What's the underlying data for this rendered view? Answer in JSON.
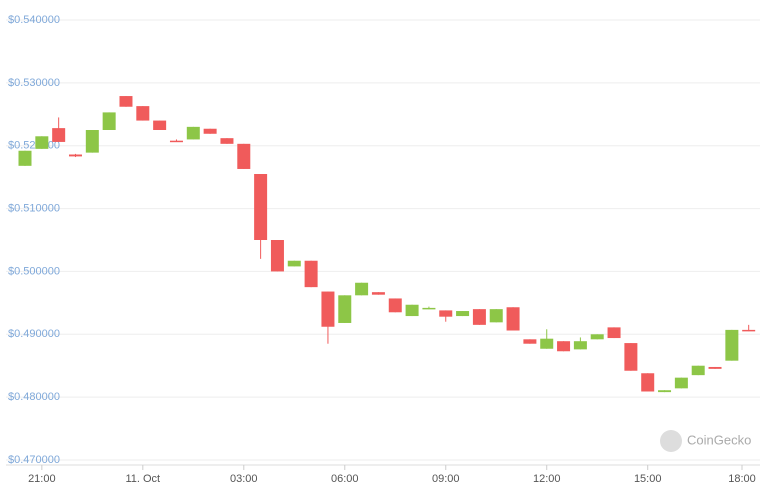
{
  "chart_data": {
    "type": "candlestick",
    "categories": [
      null,
      "21:00",
      null,
      null,
      null,
      null,
      null,
      "11. Oct",
      null,
      null,
      null,
      null,
      null,
      "03:00",
      null,
      null,
      null,
      null,
      null,
      "06:00",
      null,
      null,
      null,
      null,
      null,
      "09:00",
      null,
      null,
      null,
      null,
      null,
      "12:00",
      null,
      null,
      null,
      null,
      null,
      "15:00",
      null,
      null,
      null,
      null,
      null,
      "18:00"
    ],
    "open": [
      0.5168,
      0.5195,
      0.5228,
      0.5186,
      0.5189,
      0.5225,
      0.5279,
      0.5263,
      0.524,
      0.5208,
      0.521,
      0.5227,
      0.5212,
      0.5203,
      0.5155,
      0.505,
      0.5008,
      0.5017,
      0.4968,
      0.4918,
      0.4962,
      0.4967,
      0.4957,
      0.4929,
      0.494,
      0.4938,
      0.4929,
      0.494,
      0.4919,
      0.4943,
      0.4892,
      0.4877,
      0.4889,
      0.4876,
      0.4892,
      0.4911,
      0.4886,
      0.4838,
      0.4808,
      0.4814,
      0.4835,
      0.4848,
      0.4858,
      0.4907
    ],
    "high": [
      0.5192,
      0.5215,
      0.5245,
      0.5187,
      0.5225,
      0.5253,
      0.5279,
      0.5263,
      0.524,
      0.521,
      0.523,
      0.5227,
      0.5212,
      0.5203,
      0.5155,
      0.505,
      0.5017,
      0.5017,
      0.4968,
      0.4962,
      0.4982,
      0.4967,
      0.4957,
      0.4947,
      0.4944,
      0.4938,
      0.4937,
      0.494,
      0.494,
      0.4943,
      0.4892,
      0.4908,
      0.4889,
      0.4895,
      0.49,
      0.4911,
      0.4886,
      0.4838,
      0.4811,
      0.4831,
      0.485,
      0.4848,
      0.4907,
      0.4915
    ],
    "low": [
      0.5168,
      0.5195,
      0.5206,
      0.5182,
      0.5189,
      0.5225,
      0.5262,
      0.524,
      0.5225,
      0.5206,
      0.521,
      0.5219,
      0.5203,
      0.5163,
      0.502,
      0.5,
      0.5008,
      0.4975,
      0.4885,
      0.4918,
      0.4962,
      0.4963,
      0.4935,
      0.4929,
      0.494,
      0.492,
      0.4929,
      0.4915,
      0.4919,
      0.4906,
      0.4885,
      0.4877,
      0.4873,
      0.4876,
      0.4892,
      0.4894,
      0.4842,
      0.4809,
      0.4808,
      0.4814,
      0.4835,
      0.4845,
      0.4858,
      0.4905
    ],
    "close": [
      0.5192,
      0.5215,
      0.5206,
      0.5183,
      0.5225,
      0.5253,
      0.5262,
      0.524,
      0.5225,
      0.5206,
      0.523,
      0.5219,
      0.5203,
      0.5163,
      0.505,
      0.5,
      0.5017,
      0.4975,
      0.4912,
      0.4962,
      0.4982,
      0.4963,
      0.4935,
      0.4947,
      0.4942,
      0.4928,
      0.4937,
      0.4915,
      0.494,
      0.4906,
      0.4885,
      0.4893,
      0.4873,
      0.4889,
      0.49,
      0.4894,
      0.4842,
      0.4809,
      0.4811,
      0.4831,
      0.485,
      0.4845,
      0.4907,
      0.4905
    ],
    "up_color": "#8dc647",
    "down_color": "#f05b5b",
    "ylim": [
      0.47,
      0.54
    ],
    "yticks": [
      {
        "value": 0.47,
        "label": "$0.470000"
      },
      {
        "value": 0.48,
        "label": "$0.480000"
      },
      {
        "value": 0.49,
        "label": "$0.490000"
      },
      {
        "value": 0.5,
        "label": "$0.500000"
      },
      {
        "value": 0.51,
        "label": "$0.510000"
      },
      {
        "value": 0.52,
        "label": "$0.520000"
      },
      {
        "value": 0.53,
        "label": "$0.530000"
      },
      {
        "value": 0.54,
        "label": "$0.540000"
      }
    ],
    "grid": true,
    "watermark": "CoinGecko"
  }
}
